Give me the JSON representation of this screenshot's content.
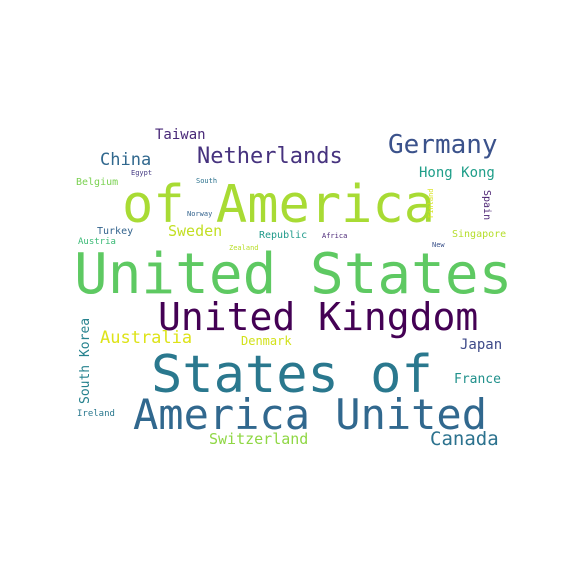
{
  "words": [
    {
      "text": "United States",
      "color": "#5ec962"
    },
    {
      "text": "of America",
      "color": "#a8db34"
    },
    {
      "text": "States of",
      "color": "#2a788e"
    },
    {
      "text": "America United",
      "color": "#31688e"
    },
    {
      "text": "United Kingdom",
      "color": "#440154"
    },
    {
      "text": "Germany",
      "color": "#3b528b"
    },
    {
      "text": "Netherlands",
      "color": "#46327e"
    },
    {
      "text": "China",
      "color": "#31688e"
    },
    {
      "text": "Taiwan",
      "color": "#482878"
    },
    {
      "text": "Hong Kong",
      "color": "#1f9e89"
    },
    {
      "text": "Australia",
      "color": "#dde318"
    },
    {
      "text": "Canada",
      "color": "#2c728e"
    },
    {
      "text": "Switzerland",
      "color": "#8fd744"
    },
    {
      "text": "Sweden",
      "color": "#c2df23"
    },
    {
      "text": "Japan",
      "color": "#3e4a89"
    },
    {
      "text": "France",
      "color": "#21918c"
    },
    {
      "text": "South Korea",
      "color": "#26828e"
    },
    {
      "text": "Denmark",
      "color": "#d2e21b"
    },
    {
      "text": "Belgium",
      "color": "#7ad151"
    },
    {
      "text": "Turkey",
      "color": "#33638d"
    },
    {
      "text": "Republic",
      "color": "#1f9a8a"
    },
    {
      "text": "Singapore",
      "color": "#b5de2b"
    },
    {
      "text": "Austria",
      "color": "#3aba76"
    },
    {
      "text": "Ireland",
      "color": "#2a788e"
    },
    {
      "text": "Spain",
      "color": "#481f70"
    },
    {
      "text": "Finland",
      "color": "#d8e219"
    },
    {
      "text": "Egypt",
      "color": "#443a83"
    },
    {
      "text": "South",
      "color": "#2c728e"
    },
    {
      "text": "Norway",
      "color": "#33638d"
    },
    {
      "text": "Zealand",
      "color": "#b8de29"
    },
    {
      "text": "Africa",
      "color": "#482475"
    },
    {
      "text": "New",
      "color": "#3b528b"
    }
  ]
}
